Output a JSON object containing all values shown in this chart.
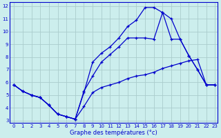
{
  "title": "Graphe des températures (°c)",
  "bg_color": "#cceeed",
  "grid_color": "#aacccc",
  "line_color": "#0000cc",
  "xlim": [
    -0.5,
    23.3
  ],
  "ylim": [
    2.8,
    12.3
  ],
  "xticks": [
    0,
    1,
    2,
    3,
    4,
    5,
    6,
    7,
    8,
    9,
    10,
    11,
    12,
    13,
    14,
    15,
    16,
    17,
    18,
    19,
    20,
    21,
    22,
    23
  ],
  "yticks": [
    3,
    4,
    5,
    6,
    7,
    8,
    9,
    10,
    11,
    12
  ],
  "line1_x": [
    0,
    1,
    2,
    3,
    4,
    5,
    6,
    7,
    8,
    9,
    10,
    11,
    12,
    13,
    14,
    15,
    16,
    17,
    18,
    19,
    20,
    21,
    22,
    23
  ],
  "line1_y": [
    5.8,
    5.3,
    5.0,
    4.8,
    4.2,
    3.5,
    3.3,
    3.1,
    4.1,
    5.2,
    5.6,
    5.8,
    6.0,
    6.3,
    6.5,
    6.6,
    6.8,
    7.1,
    7.3,
    7.5,
    7.7,
    7.8,
    5.8,
    5.8
  ],
  "line2_x": [
    0,
    1,
    2,
    3,
    4,
    5,
    6,
    7,
    8,
    9,
    10,
    11,
    12,
    13,
    14,
    15,
    16,
    17,
    18,
    19,
    20,
    21,
    22,
    23
  ],
  "line2_y": [
    5.8,
    5.3,
    5.0,
    4.8,
    4.2,
    3.5,
    3.3,
    3.1,
    5.2,
    7.6,
    8.3,
    8.8,
    9.5,
    10.4,
    10.9,
    11.9,
    11.9,
    11.5,
    11.0,
    9.4,
    8.1,
    7.0,
    5.8,
    5.8
  ],
  "line3_x": [
    0,
    1,
    2,
    3,
    4,
    5,
    6,
    7,
    8,
    9,
    10,
    11,
    12,
    13,
    14,
    15,
    16,
    17,
    18,
    19,
    20,
    21,
    22,
    23
  ],
  "line3_y": [
    5.8,
    5.3,
    5.0,
    4.8,
    4.2,
    3.5,
    3.3,
    3.1,
    5.3,
    6.5,
    7.6,
    8.2,
    8.8,
    9.5,
    9.5,
    9.5,
    9.4,
    11.5,
    9.4,
    9.4,
    8.1,
    7.0,
    5.8,
    5.8
  ]
}
